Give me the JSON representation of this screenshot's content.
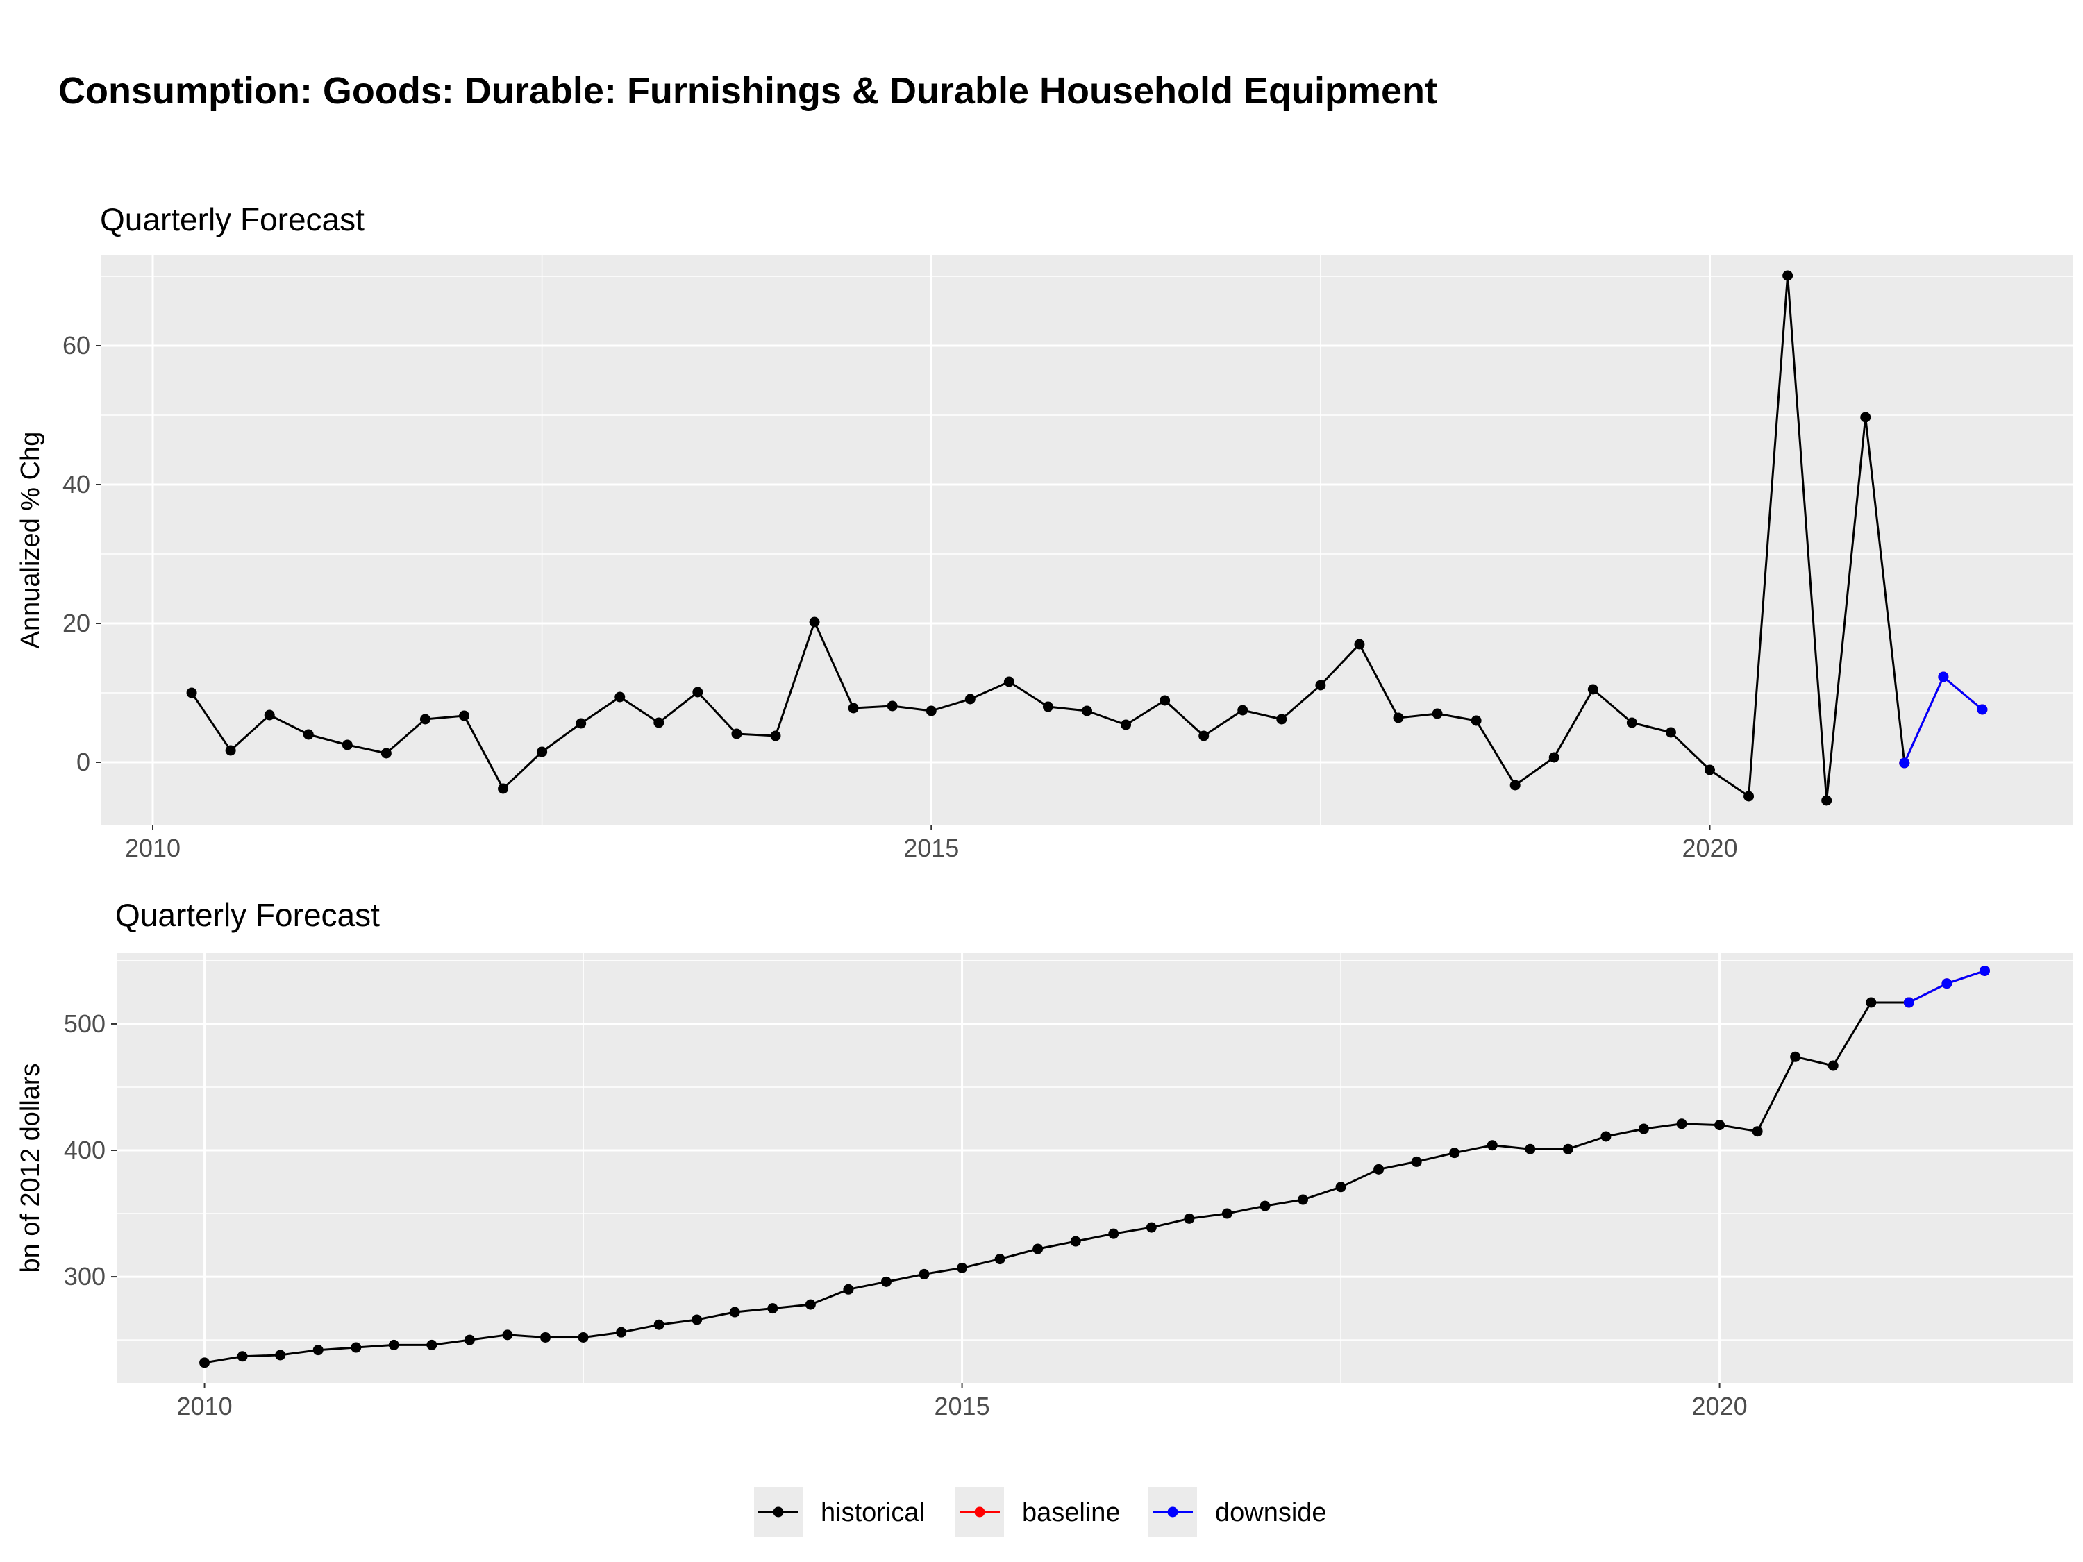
{
  "title": "Consumption: Goods: Durable: Furnishings & Durable Household Equipment",
  "legend": [
    {
      "label": "historical",
      "color": "#000000"
    },
    {
      "label": "baseline",
      "color": "#ff0000"
    },
    {
      "label": "downside",
      "color": "#0000ff"
    }
  ],
  "chart_data": [
    {
      "type": "line",
      "title": "Quarterly Forecast",
      "ylabel": "Annualized % Chg",
      "xlabel": "",
      "xlim": [
        2009.67,
        2022.33
      ],
      "ylim": [
        -9,
        73
      ],
      "x_ticks": [
        2010,
        2015,
        2020
      ],
      "y_ticks": [
        0,
        20,
        40,
        60
      ],
      "grid": true,
      "series": [
        {
          "name": "historical",
          "color": "#000000",
          "x": [
            2010.25,
            2010.5,
            2010.75,
            2011.0,
            2011.25,
            2011.5,
            2011.75,
            2012.0,
            2012.25,
            2012.5,
            2012.75,
            2013.0,
            2013.25,
            2013.5,
            2013.75,
            2014.0,
            2014.25,
            2014.5,
            2014.75,
            2015.0,
            2015.25,
            2015.5,
            2015.75,
            2016.0,
            2016.25,
            2016.5,
            2016.75,
            2017.0,
            2017.25,
            2017.5,
            2017.75,
            2018.0,
            2018.25,
            2018.5,
            2018.75,
            2019.0,
            2019.25,
            2019.5,
            2019.75,
            2020.0,
            2020.25,
            2020.5,
            2020.75,
            2021.0,
            2021.25
          ],
          "y": [
            10.0,
            1.7,
            6.8,
            4.0,
            2.5,
            1.3,
            6.2,
            6.7,
            -3.8,
            1.5,
            5.6,
            9.4,
            5.7,
            10.1,
            4.1,
            3.8,
            20.2,
            7.8,
            8.1,
            7.4,
            9.1,
            11.6,
            8.0,
            7.4,
            5.4,
            8.9,
            3.8,
            7.5,
            6.2,
            11.1,
            17.0,
            6.4,
            7.0,
            6.0,
            -3.3,
            0.7,
            10.5,
            5.7,
            4.3,
            -1.1,
            -4.9,
            70.1,
            -5.5,
            49.7,
            -0.1
          ]
        },
        {
          "name": "baseline",
          "color": "#ff0000",
          "x": [
            2021.25,
            2021.5,
            2021.75
          ],
          "y": [
            -0.1,
            12.3,
            7.6
          ]
        },
        {
          "name": "downside",
          "color": "#0000ff",
          "x": [
            2021.25,
            2021.5,
            2021.75
          ],
          "y": [
            -0.1,
            12.3,
            7.6
          ]
        }
      ]
    },
    {
      "type": "line",
      "title": "Quarterly Forecast",
      "ylabel": "bn of 2012 dollars",
      "xlabel": "",
      "xlim": [
        2009.42,
        2022.33
      ],
      "ylim": [
        216,
        556
      ],
      "x_ticks": [
        2010,
        2015,
        2020
      ],
      "y_ticks": [
        300,
        400,
        500
      ],
      "grid": true,
      "series": [
        {
          "name": "historical",
          "color": "#000000",
          "x": [
            2010.0,
            2010.25,
            2010.5,
            2010.75,
            2011.0,
            2011.25,
            2011.5,
            2011.75,
            2012.0,
            2012.25,
            2012.5,
            2012.75,
            2013.0,
            2013.25,
            2013.5,
            2013.75,
            2014.0,
            2014.25,
            2014.5,
            2014.75,
            2015.0,
            2015.25,
            2015.5,
            2015.75,
            2016.0,
            2016.25,
            2016.5,
            2016.75,
            2017.0,
            2017.25,
            2017.5,
            2017.75,
            2018.0,
            2018.25,
            2018.5,
            2018.75,
            2019.0,
            2019.25,
            2019.5,
            2019.75,
            2020.0,
            2020.25,
            2020.5,
            2020.75,
            2021.0,
            2021.25
          ],
          "y": [
            232,
            237,
            238,
            242,
            244,
            246,
            246,
            250,
            254,
            252,
            252,
            256,
            262,
            266,
            272,
            275,
            278,
            290,
            296,
            302,
            307,
            314,
            322,
            328,
            334,
            339,
            346,
            350,
            356,
            361,
            371,
            385,
            391,
            398,
            404,
            401,
            401,
            411,
            417,
            421,
            420,
            415,
            474,
            467,
            517,
            517
          ]
        },
        {
          "name": "baseline",
          "color": "#ff0000",
          "x": [
            2021.25,
            2021.5,
            2021.75
          ],
          "y": [
            517,
            532,
            542
          ]
        },
        {
          "name": "downside",
          "color": "#0000ff",
          "x": [
            2021.25,
            2021.5,
            2021.75
          ],
          "y": [
            517,
            532,
            542
          ]
        }
      ]
    }
  ]
}
